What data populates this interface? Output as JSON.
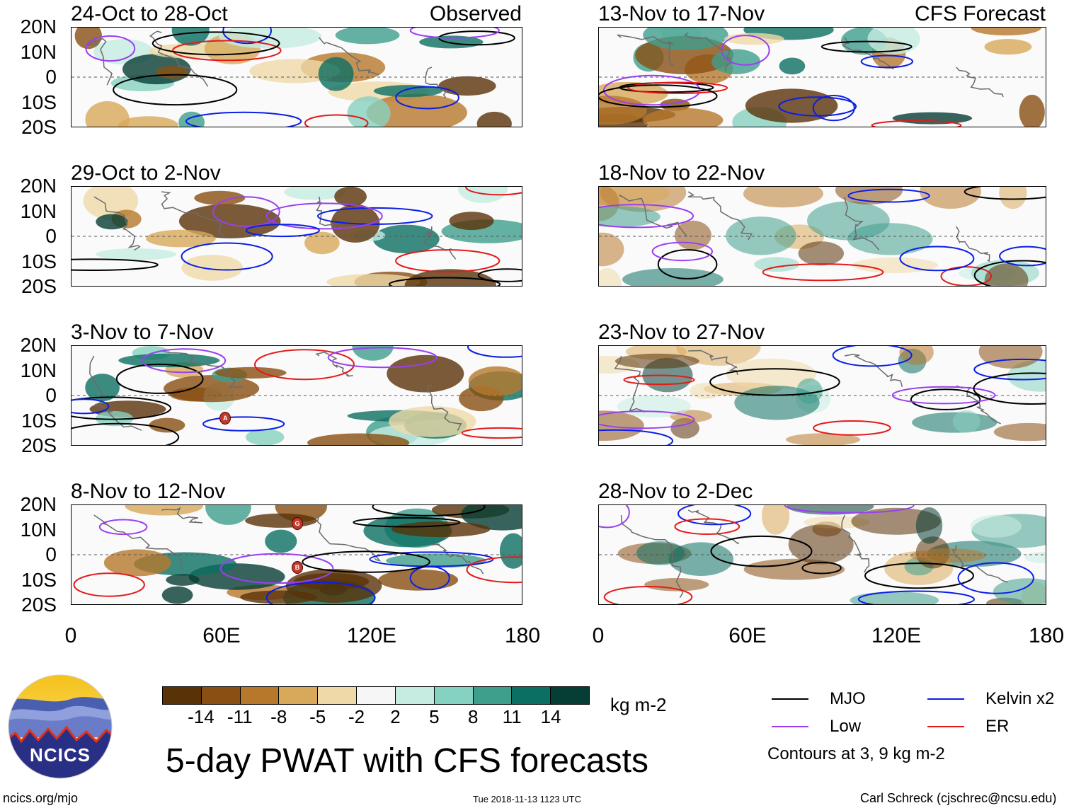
{
  "header": {
    "observed_label": "Observed",
    "forecast_label": "CFS Forecast"
  },
  "panels": [
    {
      "title": "24-Oct to 28-Oct",
      "group": "observed"
    },
    {
      "title": "29-Oct to 2-Nov",
      "group": "observed"
    },
    {
      "title": "3-Nov to 7-Nov",
      "group": "observed"
    },
    {
      "title": "8-Nov to 12-Nov",
      "group": "observed"
    },
    {
      "title": "13-Nov to 17-Nov",
      "group": "forecast"
    },
    {
      "title": "18-Nov to 22-Nov",
      "group": "forecast"
    },
    {
      "title": "23-Nov to 27-Nov",
      "group": "forecast"
    },
    {
      "title": "28-Nov to 2-Dec",
      "group": "forecast"
    }
  ],
  "lat_ticks": [
    "20N",
    "10N",
    "0",
    "10S",
    "20S"
  ],
  "lon_ticks": [
    "0",
    "60E",
    "120E",
    "180"
  ],
  "storm_markers": [
    {
      "panel": "3-Nov to 7-Nov",
      "letter": "A"
    },
    {
      "panel": "8-Nov to 12-Nov",
      "letter": "G"
    },
    {
      "panel": "8-Nov to 12-Nov",
      "letter": "B"
    }
  ],
  "colorbar": {
    "colors": [
      "#5a3208",
      "#8a4f12",
      "#b8782c",
      "#d8a95a",
      "#efd9a8",
      "#f6f6f6",
      "#c6ece2",
      "#86d2c0",
      "#3f9f8d",
      "#0b6f63",
      "#063d34"
    ],
    "ticks": [
      "-14",
      "-11",
      "-8",
      "-5",
      "-2",
      "2",
      "5",
      "8",
      "11",
      "14"
    ],
    "unit": "kg m-2"
  },
  "legend": {
    "items": [
      {
        "label": "MJO",
        "color": "#000000"
      },
      {
        "label": "Kelvin x2",
        "color": "#0a1ee6"
      },
      {
        "label": "Low",
        "color": "#9a3ff0"
      },
      {
        "label": "ER",
        "color": "#e41a1a"
      }
    ],
    "contour_note": "Contours at 3, 9 kg m-2"
  },
  "footer": {
    "main_title": "5-day PWAT with CFS forecasts",
    "logo_text": "NCICS",
    "url": "ncics.org/mjo",
    "timestamp": "Tue 2018-11-13 1123 UTC",
    "author": "Carl Schreck (cjschrec@ncsu.edu)"
  }
}
